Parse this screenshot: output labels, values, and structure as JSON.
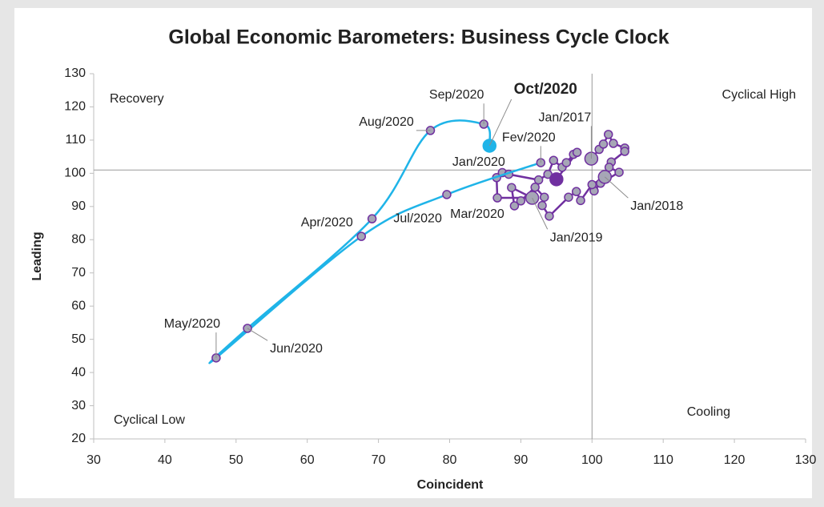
{
  "chart_data": {
    "type": "scatter-line",
    "title": "Global Economic Barometers: Business Cycle Clock",
    "x_label": "Coincident",
    "y_label": "Leading",
    "xlim": [
      30,
      130
    ],
    "ylim": [
      20,
      130
    ],
    "xticks": [
      30,
      40,
      50,
      60,
      70,
      80,
      90,
      100,
      110,
      120,
      130
    ],
    "yticks": [
      20,
      30,
      40,
      50,
      60,
      70,
      80,
      90,
      100,
      110,
      120,
      130
    ],
    "x_reference": 100,
    "y_reference": 101,
    "quadrant_labels": [
      "Recovery",
      "Cyclical High",
      "Cyclical Low",
      "Cooling"
    ],
    "series": [
      {
        "color": "#7030a0",
        "smooth": false,
        "x": [
          99.9,
          101.0,
          101.6,
          102.3,
          103.0,
          104.6,
          104.6,
          102.7,
          102.4,
          103.8,
          101.2,
          100.3,
          101.8,
          100.0,
          98.4,
          97.8,
          96.7,
          94.0,
          93.0,
          93.3,
          92.0,
          90.0,
          89.1,
          88.7,
          91.6,
          86.7,
          86.6,
          87.4,
          88.3,
          92.5,
          93.8,
          94.6,
          95.8,
          96.4,
          97.4,
          97.9,
          95.0
        ],
        "values": [
          104.4,
          107.2,
          108.8,
          111.7,
          109.0,
          107.6,
          106.6,
          103.4,
          101.8,
          100.3,
          97.0,
          94.7,
          98.9,
          96.6,
          91.8,
          94.5,
          92.8,
          87.1,
          90.3,
          92.8,
          95.8,
          91.7,
          90.2,
          95.7,
          92.6,
          92.6,
          98.7,
          100.2,
          99.7,
          98.0,
          99.7,
          103.9,
          101.8,
          103.2,
          105.7,
          106.3,
          98.2
        ],
        "point_labels": [
          "Jan/2017",
          null,
          null,
          null,
          null,
          null,
          null,
          null,
          null,
          null,
          null,
          null,
          "Jan/2018",
          null,
          null,
          null,
          null,
          null,
          null,
          null,
          null,
          null,
          null,
          null,
          "Jan/2019",
          null,
          null,
          null,
          null,
          null,
          null,
          null,
          null,
          null,
          null,
          null,
          "Jan/2020"
        ]
      },
      {
        "color": "#1fb4e8",
        "smooth": true,
        "x": [
          92.8,
          79.6,
          67.6,
          47.2,
          51.6,
          69.1,
          77.3,
          84.8,
          85.6
        ],
        "values": [
          103.2,
          93.6,
          81.0,
          44.4,
          53.3,
          86.3,
          112.9,
          114.8,
          108.3
        ],
        "point_labels": [
          "Fev/2020",
          "Mar/2020",
          "Apr/2020",
          "May/2020",
          "Jun/2020",
          "Jul/2020",
          "Aug/2020",
          "Sep/2020",
          "Oct/2020"
        ]
      }
    ]
  }
}
